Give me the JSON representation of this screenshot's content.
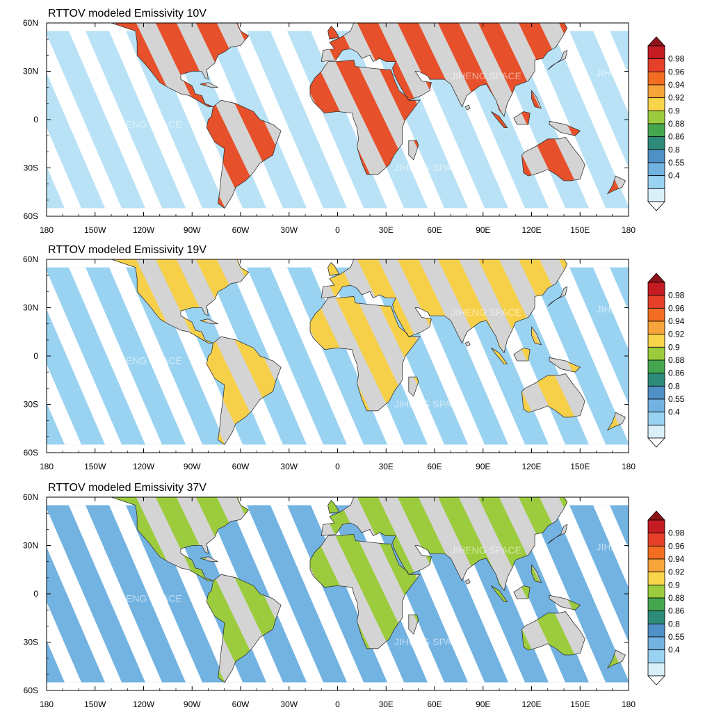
{
  "figure": {
    "colorbar_labels": [
      "0.98",
      "0.96",
      "0.94",
      "0.92",
      "0.9",
      "0.88",
      "0.86",
      "0.8",
      "0.55",
      "0.4"
    ],
    "colorbar_colors": [
      "#8e1319",
      "#c51b23",
      "#e6402a",
      "#f26d21",
      "#f7a43a",
      "#f7d44a",
      "#9ccc3d",
      "#44a750",
      "#2e8b7a",
      "#4f90c6",
      "#72b3e2",
      "#9ad3f2",
      "#d9f0fb"
    ],
    "ocean_color": "#9ad3f2",
    "land_gap_color": "#d4d4d4",
    "watermark": "JIHENG SPACE",
    "x_ticks": [
      "180",
      "150W",
      "120W",
      "90W",
      "60W",
      "30W",
      "0",
      "30E",
      "60E",
      "90E",
      "120E",
      "150E",
      "180"
    ],
    "y_ticks": [
      "60N",
      "30N",
      "0",
      "30S",
      "60S"
    ]
  },
  "panels": [
    {
      "title": "RTTOV modeled Emissivity 10V",
      "land_color": "#e6502a",
      "ocean_color": "#b9e2f6"
    },
    {
      "title": "RTTOV modeled Emissivity 19V",
      "land_color": "#f7d04a",
      "ocean_color": "#9ad3f2"
    },
    {
      "title": "RTTOV modeled Emissivity 37V",
      "land_color": "#9ccc3d",
      "ocean_color": "#72b3e2"
    }
  ],
  "chart_data": [
    {
      "type": "heatmap",
      "title": "RTTOV modeled Emissivity 10V",
      "xlim": [
        -180,
        180
      ],
      "ylim": [
        -60,
        60
      ],
      "land_emissivity": 0.95,
      "ocean_emissivity": 0.5,
      "colorbar_levels": [
        0.4,
        0.55,
        0.8,
        0.86,
        0.88,
        0.9,
        0.92,
        0.94,
        0.96,
        0.98
      ]
    },
    {
      "type": "heatmap",
      "title": "RTTOV modeled Emissivity 19V",
      "xlim": [
        -180,
        180
      ],
      "ylim": [
        -60,
        60
      ],
      "land_emissivity": 0.91,
      "ocean_emissivity": 0.55,
      "colorbar_levels": [
        0.4,
        0.55,
        0.8,
        0.86,
        0.88,
        0.9,
        0.92,
        0.94,
        0.96,
        0.98
      ]
    },
    {
      "type": "heatmap",
      "title": "RTTOV modeled Emissivity 37V",
      "xlim": [
        -180,
        180
      ],
      "ylim": [
        -60,
        60
      ],
      "land_emissivity": 0.89,
      "ocean_emissivity": 0.7,
      "colorbar_levels": [
        0.4,
        0.55,
        0.8,
        0.86,
        0.88,
        0.9,
        0.92,
        0.94,
        0.96,
        0.98
      ]
    }
  ]
}
